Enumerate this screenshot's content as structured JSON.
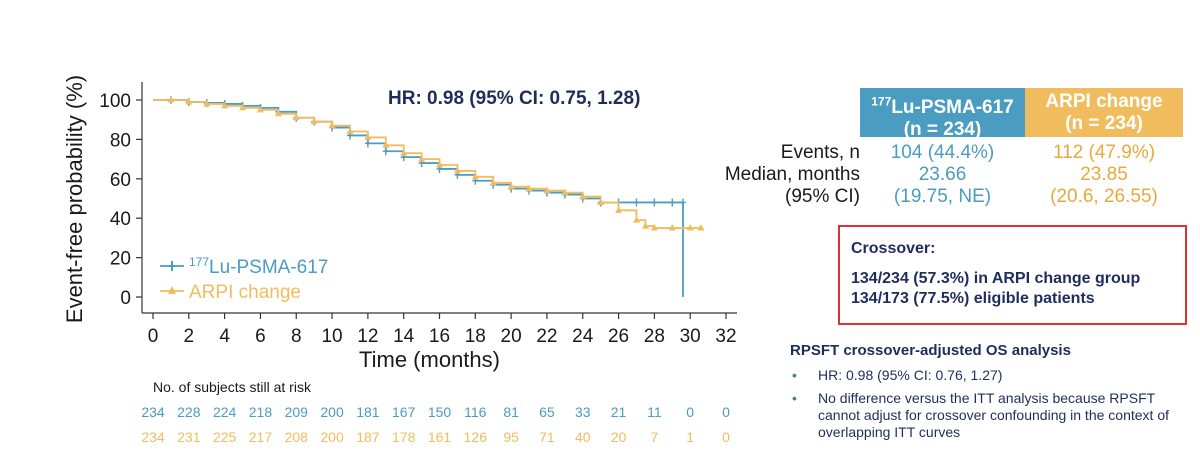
{
  "chart_data": {
    "type": "line",
    "subtype": "kaplan-meier",
    "title": "",
    "annotation": "HR: 0.98 (95% CI: 0.75, 1.28)",
    "xlabel": "Time (months)",
    "ylabel": "Event-free probability (%)",
    "xlim": [
      0,
      32
    ],
    "ylim": [
      0,
      100
    ],
    "xticks": [
      "0",
      "2",
      "4",
      "6",
      "8",
      "10",
      "12",
      "14",
      "16",
      "18",
      "20",
      "22",
      "24",
      "26",
      "28",
      "30",
      "32"
    ],
    "yticks": [
      "0",
      "20",
      "40",
      "60",
      "80",
      "100"
    ],
    "grid": false,
    "legend_position": "bottom-left",
    "series": [
      {
        "name": "Lu-PSMA-617",
        "name_sup": "177",
        "color": "#4a9cc0",
        "marker": "plus",
        "points": [
          [
            0,
            100
          ],
          [
            1,
            100
          ],
          [
            2,
            99
          ],
          [
            3,
            98.5
          ],
          [
            4,
            98
          ],
          [
            5,
            97
          ],
          [
            6,
            96
          ],
          [
            7,
            94
          ],
          [
            8,
            91
          ],
          [
            9,
            89
          ],
          [
            10,
            86
          ],
          [
            11,
            82
          ],
          [
            12,
            78
          ],
          [
            13,
            74
          ],
          [
            14,
            71
          ],
          [
            15,
            68
          ],
          [
            16,
            65
          ],
          [
            17,
            62
          ],
          [
            18,
            59
          ],
          [
            19,
            57
          ],
          [
            20,
            55
          ],
          [
            21,
            54
          ],
          [
            22,
            53
          ],
          [
            23,
            52
          ],
          [
            24,
            50
          ],
          [
            25,
            48
          ],
          [
            26,
            48
          ],
          [
            27,
            48
          ],
          [
            28,
            48
          ],
          [
            29,
            48
          ],
          [
            29.6,
            48
          ],
          [
            29.6,
            0
          ]
        ]
      },
      {
        "name": "ARPI change",
        "color": "#f0bc5e",
        "marker": "triangle",
        "points": [
          [
            0,
            100
          ],
          [
            1,
            100
          ],
          [
            2,
            99
          ],
          [
            3,
            98
          ],
          [
            4,
            97
          ],
          [
            5,
            96
          ],
          [
            6,
            95
          ],
          [
            7,
            93
          ],
          [
            8,
            91
          ],
          [
            9,
            89
          ],
          [
            10,
            87
          ],
          [
            11,
            84
          ],
          [
            12,
            81
          ],
          [
            13,
            77
          ],
          [
            14,
            73
          ],
          [
            15,
            70
          ],
          [
            16,
            67
          ],
          [
            17,
            64
          ],
          [
            18,
            61
          ],
          [
            19,
            58
          ],
          [
            20,
            56
          ],
          [
            21,
            55
          ],
          [
            22,
            54
          ],
          [
            23,
            53
          ],
          [
            24,
            51
          ],
          [
            25,
            48
          ],
          [
            26,
            44
          ],
          [
            27,
            39
          ],
          [
            27.5,
            36
          ],
          [
            28,
            35
          ],
          [
            29,
            35
          ],
          [
            30,
            35
          ],
          [
            30.6,
            35
          ]
        ]
      }
    ],
    "risk_table": {
      "title": "No. of subjects still at risk",
      "times": [
        0,
        2,
        4,
        6,
        8,
        10,
        12,
        14,
        16,
        18,
        20,
        22,
        24,
        26,
        28,
        30,
        32
      ],
      "rows": [
        {
          "series": "Lu-PSMA-617",
          "values": [
            "234",
            "228",
            "224",
            "218",
            "209",
            "200",
            "181",
            "167",
            "150",
            "116",
            "81",
            "65",
            "33",
            "21",
            "11",
            "0",
            "0"
          ]
        },
        {
          "series": "ARPI change",
          "values": [
            "234",
            "231",
            "225",
            "217",
            "208",
            "200",
            "187",
            "178",
            "161",
            "126",
            "95",
            "71",
            "40",
            "20",
            "7",
            "1",
            "0"
          ]
        }
      ]
    }
  },
  "summary": {
    "header_lu_sup": "177",
    "header_lu": "Lu-PSMA-617",
    "header_lu_n": "(n = 234)",
    "header_arpi": "ARPI change",
    "header_arpi_n": "(n = 234)",
    "rows": [
      {
        "label": "Events, n",
        "lu": "104 (44.4%)",
        "arpi": "112 (47.9%)"
      },
      {
        "label": "Median, months",
        "lu": "23.66",
        "arpi": "23.85"
      },
      {
        "label": "(95% CI)",
        "lu": "(19.75, NE)",
        "arpi": "(20.6, 26.55)"
      }
    ]
  },
  "crossover": {
    "title": "Crossover:",
    "line1": "134/234 (57.3%) in ARPI change group",
    "line2": "134/173 (77.5%) eligible patients"
  },
  "rpsft": {
    "title": "RPSFT crossover-adjusted OS analysis",
    "bullet": "•",
    "items": [
      "HR: 0.98 (95% CI: 0.76, 1.27)",
      "No difference versus the ITT analysis because RPSFT cannot adjust for crossover confounding in the context of overlapping ITT curves"
    ]
  },
  "colors": {
    "lu": "#4a9cc0",
    "arpi": "#f0bc5e",
    "navy": "#1f2d5c",
    "red": "#d93333"
  }
}
